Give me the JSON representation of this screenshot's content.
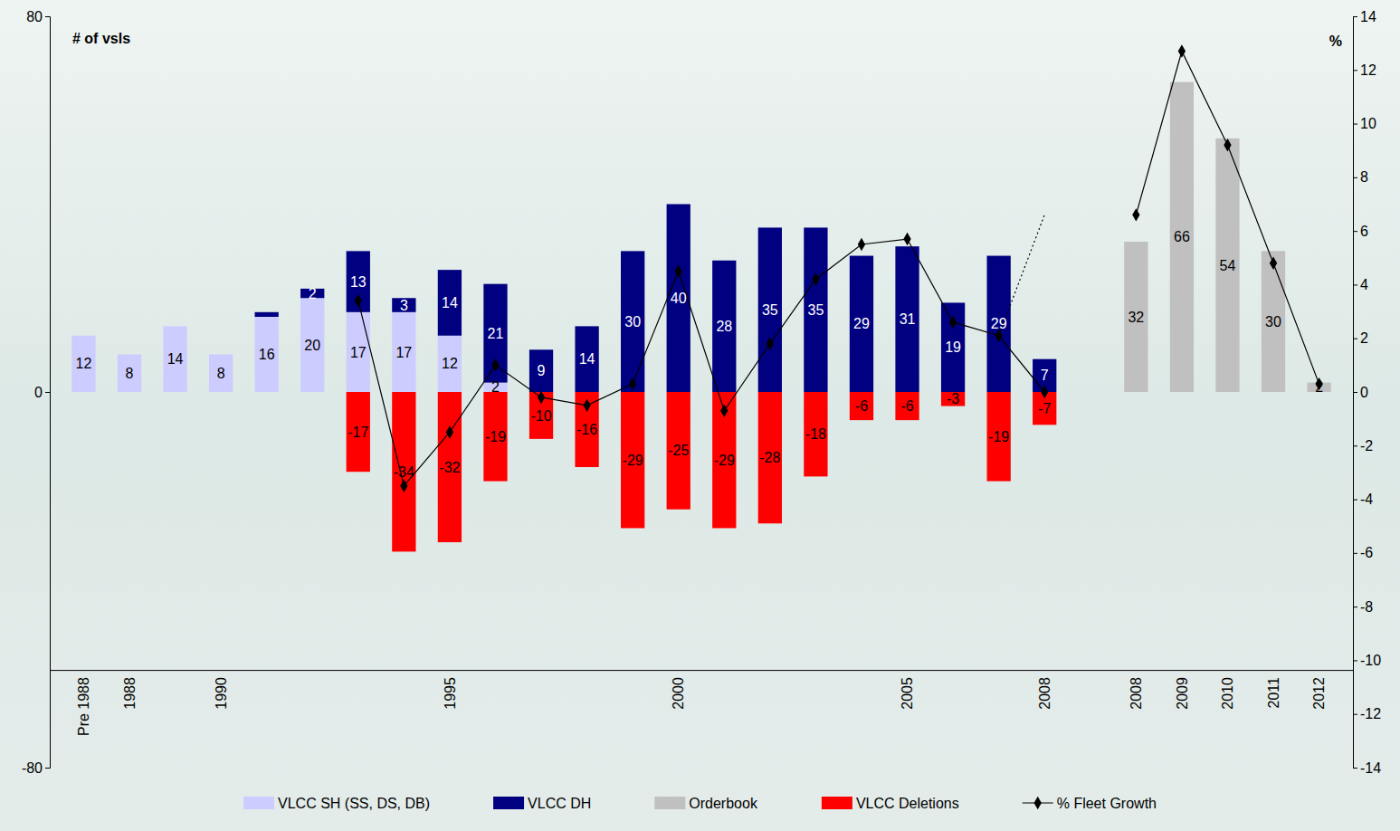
{
  "chart_data": {
    "type": "bar",
    "stacked": true,
    "ylabel": "# of vsls",
    "y2label": "%",
    "categories": [
      "Pre 1988",
      "1988",
      null,
      "1990",
      null,
      null,
      null,
      null,
      "1995",
      null,
      null,
      null,
      null,
      "2000",
      null,
      null,
      null,
      null,
      "2005",
      null,
      null,
      "2008",
      null,
      "2008",
      "2009",
      "2010",
      "2011",
      "2012"
    ],
    "ylim": [
      -80,
      80
    ],
    "yticks": [
      -80,
      0,
      80
    ],
    "y2lim": [
      -14,
      14
    ],
    "y2ticks": [
      -14,
      -12,
      -10,
      -8,
      -6,
      -4,
      -2,
      0,
      2,
      4,
      6,
      8,
      10,
      12,
      14
    ],
    "grid": false,
    "legend": "bottom",
    "series": [
      {
        "name": "VLCC SH (SS, DS, DB)",
        "type": "bar",
        "color": "#ccccff",
        "data_labels": true,
        "values": [
          12,
          8,
          14,
          8,
          16,
          20,
          17,
          17,
          12,
          2,
          null,
          null,
          null,
          null,
          null,
          null,
          null,
          null,
          null,
          null,
          null,
          null,
          null,
          null,
          null,
          null,
          null,
          null
        ]
      },
      {
        "name": "VLCC DH",
        "type": "bar",
        "color": "#000080",
        "data_labels": true,
        "values": [
          null,
          null,
          null,
          null,
          1,
          2,
          13,
          3,
          14,
          21,
          9,
          14,
          30,
          40,
          28,
          35,
          35,
          29,
          31,
          19,
          29,
          7,
          null,
          null,
          null,
          null,
          null,
          null
        ],
        "value_labels": [
          null,
          null,
          null,
          null,
          null,
          "2",
          "13",
          "3",
          "14",
          "21",
          "9",
          "14",
          "30",
          "40",
          "28",
          "35",
          "35",
          "29",
          "31",
          "19",
          "29",
          "7",
          null,
          null,
          null,
          null,
          null,
          null
        ]
      },
      {
        "name": "Orderbook",
        "type": "bar",
        "color": "#c0c0c0",
        "data_labels": true,
        "values": [
          null,
          null,
          null,
          null,
          null,
          null,
          null,
          null,
          null,
          null,
          null,
          null,
          null,
          null,
          null,
          null,
          null,
          null,
          null,
          null,
          null,
          null,
          null,
          32,
          66,
          54,
          30,
          2
        ]
      },
      {
        "name": "VLCC Deletions",
        "type": "bar",
        "color": "#ff0000",
        "data_labels": true,
        "values": [
          null,
          null,
          null,
          null,
          null,
          null,
          -17,
          -34,
          -32,
          -19,
          -10,
          -16,
          -29,
          -25,
          -29,
          -28,
          -18,
          -6,
          -6,
          -3,
          -19,
          -7,
          null,
          null,
          null,
          null,
          null,
          null
        ]
      },
      {
        "name": "% Fleet Growth",
        "type": "line",
        "axis": "y2",
        "color": "#000000",
        "marker": "diamond",
        "line_style": "solid",
        "data_labels": false,
        "values": [
          null,
          null,
          null,
          null,
          null,
          null,
          3.4,
          -3.5,
          -1.5,
          1.0,
          -0.2,
          -0.5,
          0.3,
          4.5,
          -0.7,
          1.8,
          4.2,
          5.5,
          5.7,
          2.6,
          2.1,
          0.0,
          null,
          6.6,
          12.7,
          9.2,
          4.8,
          0.3
        ]
      },
      {
        "name": "% Fleet Growth",
        "type": "line",
        "axis": "y2",
        "color": "#000000",
        "marker": "none",
        "line_style": "dotted",
        "data_labels": false,
        "values": [
          null,
          null,
          null,
          null,
          null,
          null,
          null,
          null,
          null,
          null,
          null,
          null,
          null,
          null,
          null,
          null,
          null,
          null,
          null,
          null,
          2.1,
          6.6,
          null,
          null,
          null,
          null,
          null,
          null
        ]
      }
    ]
  }
}
